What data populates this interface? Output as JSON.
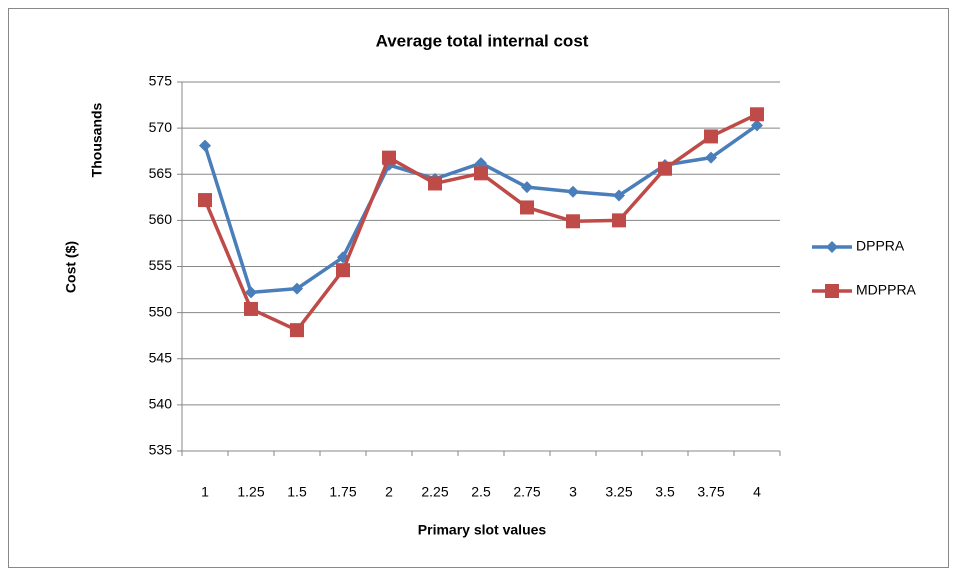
{
  "chart_data": {
    "type": "line",
    "title": "Average total internal cost",
    "x_label": "Primary slot values",
    "y_label": "Cost ($)",
    "y_unit_label": "Thousands",
    "categories": [
      "1",
      "1.25",
      "1.5",
      "1.75",
      "2",
      "2.25",
      "2.5",
      "2.75",
      "3",
      "3.25",
      "3.5",
      "3.75",
      "4"
    ],
    "series": [
      {
        "name": "DPPRA",
        "color": "#4a7ebb",
        "marker": "diamond",
        "values": [
          568.1,
          552.2,
          552.6,
          556.0,
          566.0,
          564.5,
          566.2,
          563.6,
          563.1,
          562.7,
          566.0,
          566.8,
          570.3
        ]
      },
      {
        "name": "MDPPRA",
        "color": "#be4b48",
        "marker": "square",
        "values": [
          562.2,
          550.4,
          548.1,
          554.6,
          566.8,
          564.0,
          565.1,
          561.4,
          559.9,
          560.0,
          565.6,
          569.1,
          571.5
        ]
      }
    ],
    "ylim": [
      535,
      575
    ],
    "yticks": [
      535,
      540,
      545,
      550,
      555,
      560,
      565,
      570,
      575
    ],
    "grid": true,
    "legend": "right"
  }
}
